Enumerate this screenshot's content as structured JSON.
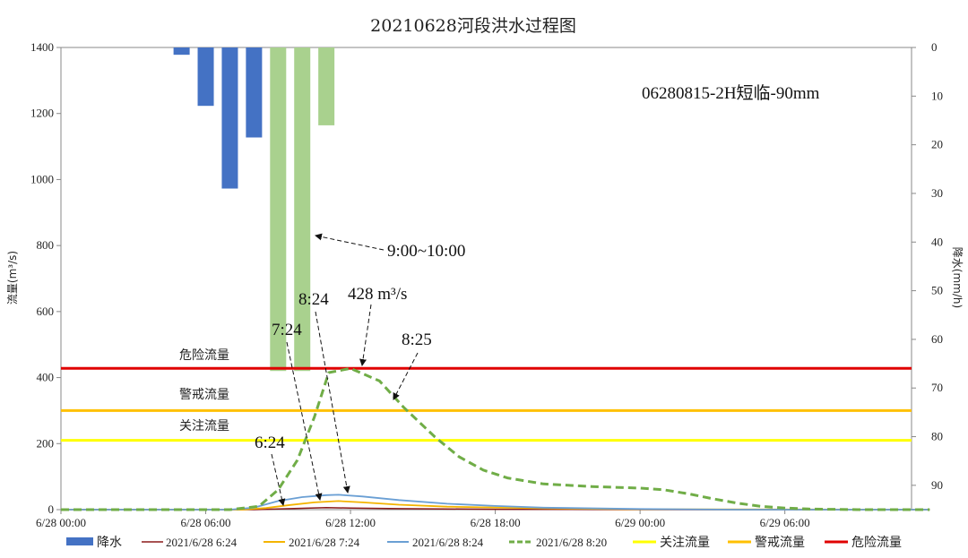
{
  "chart_data": {
    "type": "line",
    "title": "20210628河段洪水过程图",
    "ylabel_left": "流量(m³/s)",
    "ylabel_right": "降水(mm/h)",
    "ylim_left": [
      0,
      1400
    ],
    "yticks_left": [
      0,
      200,
      400,
      600,
      800,
      1000,
      1200,
      1400
    ],
    "ylim_right": [
      0,
      95
    ],
    "yticks_right": [
      0,
      10,
      20,
      30,
      40,
      50,
      60,
      70,
      80,
      90
    ],
    "x_range": [
      "6/28 00:00",
      "6/29 16:00"
    ],
    "xticks": [
      {
        "h": 0,
        "label": "6/28 00:00"
      },
      {
        "h": 6,
        "label": "6/28 06:00"
      },
      {
        "h": 12,
        "label": "6/28 12:00"
      },
      {
        "h": 18,
        "label": "6/28 18:00"
      },
      {
        "h": 24,
        "label": "6/29 00:00"
      },
      {
        "h": 30,
        "label": "6/29 06:00"
      }
    ],
    "rainfall": [
      {
        "h": 5.0,
        "value": 1.5,
        "color": "#4472c4"
      },
      {
        "h": 6.0,
        "value": 12,
        "color": "#4472c4"
      },
      {
        "h": 7.0,
        "value": 29,
        "color": "#4472c4"
      },
      {
        "h": 8.0,
        "value": 18.5,
        "color": "#4472c4"
      },
      {
        "h": 9.0,
        "value": 66.5,
        "color": "#a9d18e"
      },
      {
        "h": 10.0,
        "value": 66.5,
        "color": "#a9d18e"
      },
      {
        "h": 11.0,
        "value": 16,
        "color": "#a9d18e"
      }
    ],
    "series": [
      {
        "name": "2021/6/28 6:24",
        "color": "#8b1a1a",
        "dash": false,
        "width": 1.5,
        "points": [
          [
            0,
            0
          ],
          [
            8,
            0
          ],
          [
            9,
            2
          ],
          [
            10,
            4
          ],
          [
            11,
            6
          ],
          [
            12,
            5
          ],
          [
            14,
            3
          ],
          [
            18,
            1
          ],
          [
            24,
            0
          ],
          [
            36,
            0
          ]
        ]
      },
      {
        "name": "2021/6/28 7:24",
        "color": "#f4b400",
        "dash": false,
        "width": 1.8,
        "points": [
          [
            0,
            0
          ],
          [
            7.5,
            0
          ],
          [
            8.5,
            5
          ],
          [
            9.5,
            14
          ],
          [
            10.5,
            22
          ],
          [
            11.5,
            26
          ],
          [
            12.5,
            22
          ],
          [
            14,
            15
          ],
          [
            16,
            9
          ],
          [
            20,
            4
          ],
          [
            24,
            1
          ],
          [
            36,
            0
          ]
        ]
      },
      {
        "name": "2021/6/28 8:24",
        "color": "#6a9fd4",
        "dash": false,
        "width": 1.8,
        "points": [
          [
            0,
            0
          ],
          [
            7,
            0
          ],
          [
            8,
            6
          ],
          [
            9,
            26
          ],
          [
            10,
            38
          ],
          [
            11,
            44
          ],
          [
            11.5,
            45
          ],
          [
            12.5,
            40
          ],
          [
            14,
            29
          ],
          [
            16,
            18
          ],
          [
            18,
            11
          ],
          [
            20,
            6
          ],
          [
            24,
            2
          ],
          [
            28,
            0
          ],
          [
            36,
            0
          ]
        ]
      },
      {
        "name": "2021/6/28 8:20",
        "color": "#70ad47",
        "dash": true,
        "width": 3.0,
        "points": [
          [
            0,
            0
          ],
          [
            7,
            0
          ],
          [
            8.2,
            10
          ],
          [
            9,
            60
          ],
          [
            9.8,
            150
          ],
          [
            10.5,
            280
          ],
          [
            11.1,
            415
          ],
          [
            12,
            428
          ],
          [
            13.2,
            390
          ],
          [
            14.2,
            310
          ],
          [
            15.5,
            220
          ],
          [
            16.5,
            160
          ],
          [
            17.5,
            120
          ],
          [
            18.5,
            96
          ],
          [
            20,
            78
          ],
          [
            22,
            70
          ],
          [
            24,
            65
          ],
          [
            25,
            60
          ],
          [
            26,
            48
          ],
          [
            27,
            33
          ],
          [
            28,
            20
          ],
          [
            29,
            10
          ],
          [
            30,
            5
          ],
          [
            31,
            2
          ],
          [
            33,
            0
          ],
          [
            36,
            0
          ]
        ]
      },
      {
        "name": "关注流量",
        "color": "#ffff00",
        "dash": false,
        "width": 3.0,
        "constant": 210
      },
      {
        "name": "警戒流量",
        "color": "#ffc000",
        "dash": false,
        "width": 3.0,
        "constant": 300
      },
      {
        "name": "危险流量",
        "color": "#e00000",
        "dash": false,
        "width": 3.0,
        "constant": 428
      }
    ],
    "threshold_labels": {
      "danger": "危险流量",
      "warning": "警戒流量",
      "attention": "关注流量"
    },
    "annotations": {
      "scenario": "06280815-2H短临-90mm",
      "rain_window": "9:00~10:00",
      "peak": "428 m³/s",
      "t_624": "6:24",
      "t_724": "7:24",
      "t_824": "8:24",
      "t_825": "8:25"
    },
    "legend": {
      "position": "bottom",
      "rain": "降水",
      "items": [
        "2021/6/28 6:24",
        "2021/6/28 7:24",
        "2021/6/28 8:24",
        "2021/6/28 8:20",
        "关注流量",
        "警戒流量",
        "危险流量"
      ]
    }
  }
}
